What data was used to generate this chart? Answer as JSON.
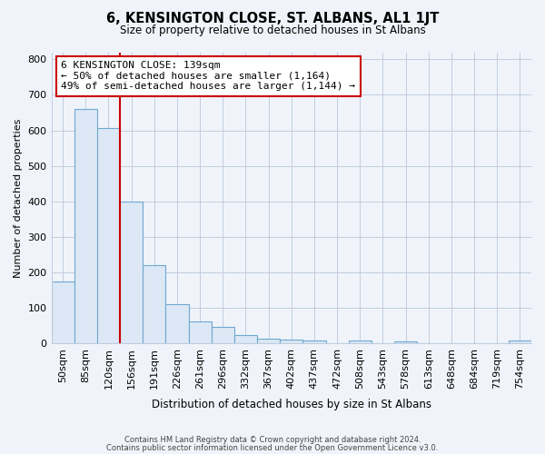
{
  "title": "6, KENSINGTON CLOSE, ST. ALBANS, AL1 1JT",
  "subtitle": "Size of property relative to detached houses in St Albans",
  "xlabel": "Distribution of detached houses by size in St Albans",
  "ylabel": "Number of detached properties",
  "bar_labels": [
    "50sqm",
    "85sqm",
    "120sqm",
    "156sqm",
    "191sqm",
    "226sqm",
    "261sqm",
    "296sqm",
    "332sqm",
    "367sqm",
    "402sqm",
    "437sqm",
    "472sqm",
    "508sqm",
    "543sqm",
    "578sqm",
    "613sqm",
    "648sqm",
    "684sqm",
    "719sqm",
    "754sqm"
  ],
  "bar_values": [
    175,
    660,
    607,
    400,
    220,
    110,
    62,
    48,
    25,
    15,
    12,
    8,
    0,
    8,
    0,
    6,
    0,
    0,
    0,
    0,
    8
  ],
  "bar_fill_color": "#dce8f5",
  "bar_edge_color": "#6fa8d0",
  "vline_x_idx": 3,
  "vline_color": "#cc0000",
  "annotation_text": "6 KENSINGTON CLOSE: 139sqm\n← 50% of detached houses are smaller (1,164)\n49% of semi-detached houses are larger (1,144) →",
  "annotation_box_color": "#ffffff",
  "annotation_box_edge": "#cc0000",
  "ylim": [
    0,
    820
  ],
  "yticks": [
    0,
    100,
    200,
    300,
    400,
    500,
    600,
    700,
    800
  ],
  "footnote1": "Contains HM Land Registry data © Crown copyright and database right 2024.",
  "footnote2": "Contains public sector information licensed under the Open Government Licence v3.0.",
  "background_color": "#f0f4fa",
  "grid_color": "#c0cce0"
}
